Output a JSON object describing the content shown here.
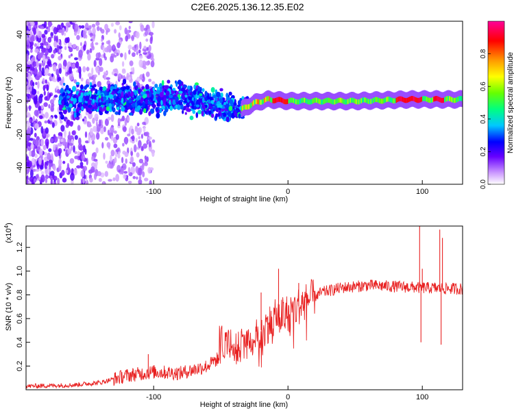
{
  "figure": {
    "title": "C2E6.2025.136.12.35.E02"
  },
  "chart_data": [
    {
      "type": "heatmap",
      "xlabel": "Height of straight line (km)",
      "ylabel": "Frequency (Hz)",
      "xlim": [
        -195,
        130
      ],
      "ylim": [
        -50,
        48
      ],
      "xticks": [
        -100,
        0,
        100
      ],
      "yticks": [
        -40,
        -20,
        0,
        20,
        40
      ],
      "band_center_hz": [
        [
          -195,
          0
        ],
        [
          -80,
          2
        ],
        [
          -60,
          0
        ],
        [
          -45,
          -4
        ],
        [
          -35,
          -5
        ],
        [
          -25,
          -1
        ],
        [
          -15,
          1
        ],
        [
          0,
          0
        ],
        [
          50,
          0
        ],
        [
          90,
          1
        ],
        [
          130,
          1
        ]
      ],
      "colorbar": {
        "label": "Normalized spectral amplitude",
        "ticks": [
          0.0,
          0.2,
          0.4,
          0.6,
          0.8
        ],
        "range": [
          0,
          1
        ]
      }
    },
    {
      "type": "line",
      "xlabel": "Height of straight line (km)",
      "ylabel": "SNR (10 * v/v)",
      "y_multiplier": "(x10",
      "y_multiplier_exp": "4",
      "xlim": [
        -195,
        130
      ],
      "ylim": [
        0,
        1.38
      ],
      "xticks": [
        -100,
        0,
        100
      ],
      "yticks": [
        0.2,
        0.4,
        0.6,
        0.8,
        1.0,
        1.2
      ],
      "trend": [
        [
          -195,
          0.03
        ],
        [
          -160,
          0.04
        ],
        [
          -140,
          0.06
        ],
        [
          -120,
          0.12
        ],
        [
          -100,
          0.15
        ],
        [
          -80,
          0.14
        ],
        [
          -60,
          0.2
        ],
        [
          -45,
          0.32
        ],
        [
          -30,
          0.38
        ],
        [
          -20,
          0.5
        ],
        [
          -10,
          0.6
        ],
        [
          0,
          0.65
        ],
        [
          10,
          0.72
        ],
        [
          25,
          0.82
        ],
        [
          40,
          0.86
        ],
        [
          60,
          0.88
        ],
        [
          80,
          0.87
        ],
        [
          100,
          0.86
        ],
        [
          130,
          0.85
        ]
      ],
      "spikes": [
        [
          -104,
          0.3
        ],
        [
          -20,
          0.82
        ],
        [
          -15,
          0.62
        ],
        [
          -7,
          1.02
        ],
        [
          8,
          0.9
        ],
        [
          98,
          1.38
        ],
        [
          100,
          1.02
        ],
        [
          99,
          0.4
        ],
        [
          113,
          1.35
        ],
        [
          115,
          1.28
        ],
        [
          114,
          0.38
        ]
      ]
    }
  ]
}
